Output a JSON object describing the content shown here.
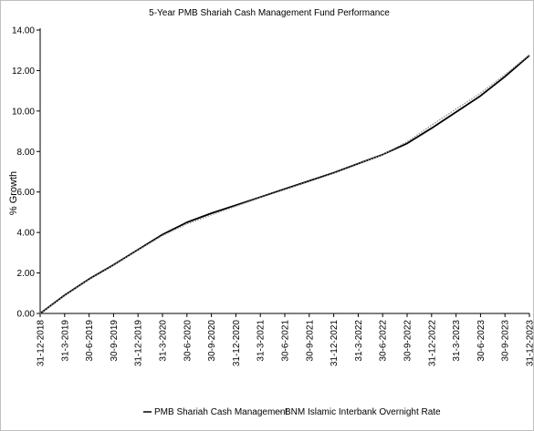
{
  "chart_data": {
    "type": "line",
    "title": "5-Year PMB Shariah Cash Management Fund Performance",
    "ylabel": "% Growth",
    "xlabel": "",
    "ylim": [
      0,
      14
    ],
    "yticks": [
      "0.00",
      "2.00",
      "4.00",
      "6.00",
      "8.00",
      "10.00",
      "12.00",
      "14.00"
    ],
    "x": [
      "31-12-2018",
      "31-3-2019",
      "30-6-2019",
      "30-9-2019",
      "31-12-2019",
      "31-3-2020",
      "30-6-2020",
      "30-9-2020",
      "31-12-2020",
      "31-3-2021",
      "30-6-2021",
      "30-9-2021",
      "31-12-2021",
      "31-3-2022",
      "30-6-2022",
      "30-9-2022",
      "31-12-2022",
      "31-3-2023",
      "30-6-2023",
      "30-9-2023",
      "31-12-2023"
    ],
    "series": [
      {
        "name": "PMB Shariah Cash Management",
        "color": "#000000",
        "style": "solid",
        "values": [
          0.0,
          0.9,
          1.7,
          2.4,
          3.15,
          3.9,
          4.5,
          4.95,
          5.35,
          5.75,
          6.15,
          6.55,
          6.95,
          7.4,
          7.85,
          8.4,
          9.15,
          9.95,
          10.75,
          11.7,
          12.75
        ]
      },
      {
        "name": "BNM Islamic Interbank Overnight Rate",
        "color": "#8c8c8c",
        "style": "dotted",
        "values": [
          0.0,
          0.88,
          1.68,
          2.38,
          3.13,
          3.85,
          4.42,
          4.87,
          5.3,
          5.72,
          6.12,
          6.52,
          6.93,
          7.38,
          7.85,
          8.48,
          9.3,
          10.1,
          10.88,
          11.8,
          12.78
        ]
      }
    ],
    "grid": false,
    "legend_position": "bottom"
  }
}
